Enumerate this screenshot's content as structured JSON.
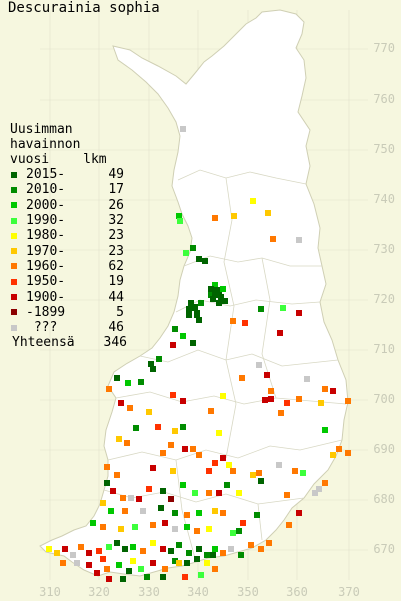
{
  "title": "Descurainia sophia",
  "legend": {
    "heading": [
      "Uusimman",
      "havainnon",
      "vuosi"
    ],
    "count_heading": "lkm",
    "items": [
      {
        "label": "2015-",
        "count": "49",
        "color": "#006400"
      },
      {
        "label": "2010-",
        "count": "17",
        "color": "#008c00"
      },
      {
        "label": "2000-",
        "count": "26",
        "color": "#00c800"
      },
      {
        "label": "1990-",
        "count": "32",
        "color": "#3cff3c"
      },
      {
        "label": "1980-",
        "count": "23",
        "color": "#ffff00"
      },
      {
        "label": "1970-",
        "count": "23",
        "color": "#ffc800"
      },
      {
        "label": "1960-",
        "count": "62",
        "color": "#ff7800"
      },
      {
        "label": "1950-",
        "count": "19",
        "color": "#ff3200"
      },
      {
        "label": "1900-",
        "count": "44",
        "color": "#c80000"
      },
      {
        "label": "-1899",
        "count": "5",
        "color": "#8c0000"
      },
      {
        "label": " ???",
        "count": "46",
        "color": "#c8c8c8"
      }
    ],
    "total_label": "Yhteensä",
    "total_count": "346"
  },
  "grid_y_labels": [
    "770",
    "760",
    "750",
    "740",
    "730",
    "720",
    "710",
    "700",
    "690",
    "680",
    "670"
  ],
  "grid_x_labels": [
    "310",
    "320",
    "330",
    "340",
    "350",
    "360",
    "370"
  ],
  "colors": {
    "background": "#f6f7df",
    "land": "#ffffff",
    "grid": "#dcdcc0",
    "border": "#cfcfb4"
  }
}
